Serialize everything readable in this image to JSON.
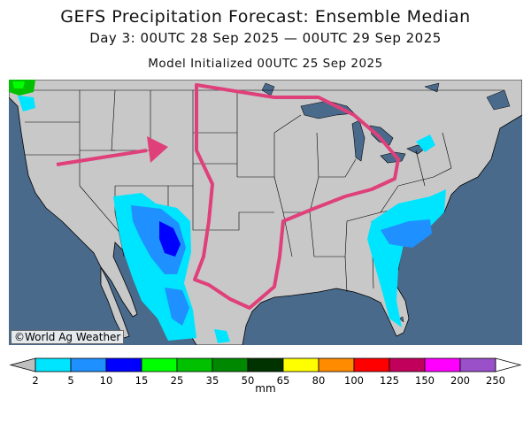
{
  "header": {
    "title": "GEFS Precipitation Forecast: Ensemble Median",
    "subtitle": "Day 3: 00UTC 28 Sep 2025 — 00UTC 29 Sep 2025",
    "initialized": "Model Initialized 00UTC 25 Sep 2025"
  },
  "map": {
    "credit": "©World Ag Weather",
    "colors": {
      "ocean": "#4a6a8c",
      "land": "#c8c8c8",
      "highlight": "#e0407a"
    }
  },
  "legend": {
    "units": "mm",
    "labels": [
      "2",
      "5",
      "10",
      "15",
      "25",
      "35",
      "50",
      "65",
      "80",
      "100",
      "125",
      "150",
      "200",
      "250"
    ],
    "colors": [
      "#00e5ff",
      "#1e90ff",
      "#0000ff",
      "#00ff00",
      "#00c000",
      "#008800",
      "#003300",
      "#ffff00",
      "#ff8c00",
      "#ff0000",
      "#c0005a",
      "#ff00ff",
      "#9a50c8"
    ]
  }
}
